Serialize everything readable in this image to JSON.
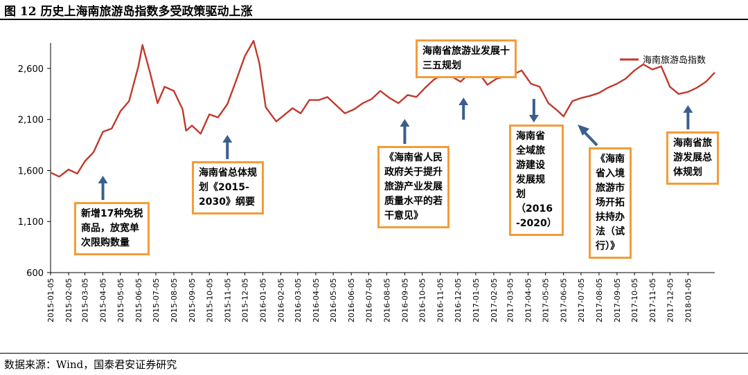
{
  "header": {
    "title": "图 12  历史上海南旅游岛指数多受政策驱动上涨"
  },
  "footer": {
    "source": "数据来源：Wind，国泰君安证券研究"
  },
  "colors": {
    "series": "#c0392b",
    "annotation_border": "#f39c3a",
    "arrow": "#3a5f8f",
    "axis": "#000000"
  },
  "chart_data": {
    "type": "line",
    "title": "",
    "xlabel": "",
    "ylabel": "",
    "ylim": [
      600,
      2850
    ],
    "y_ticks": [
      "600",
      "1,100",
      "1,600",
      "2,100",
      "2,600"
    ],
    "legend_position": "top-right",
    "grid": false,
    "series": [
      {
        "name": "海南旅游岛指数",
        "x": [
          "2015-01-05",
          "2015-01-20",
          "2015-02-05",
          "2015-02-20",
          "2015-03-05",
          "2015-03-20",
          "2015-04-05",
          "2015-04-20",
          "2015-05-05",
          "2015-05-20",
          "2015-06-05",
          "2015-06-12",
          "2015-06-25",
          "2015-07-08",
          "2015-07-20",
          "2015-08-05",
          "2015-08-20",
          "2015-08-26",
          "2015-09-05",
          "2015-09-20",
          "2015-10-05",
          "2015-10-20",
          "2015-11-05",
          "2015-11-20",
          "2015-12-05",
          "2015-12-20",
          "2015-12-30",
          "2016-01-10",
          "2016-01-28",
          "2016-02-10",
          "2016-02-25",
          "2016-03-10",
          "2016-03-25",
          "2016-04-10",
          "2016-04-25",
          "2016-05-10",
          "2016-05-25",
          "2016-06-10",
          "2016-06-25",
          "2016-07-10",
          "2016-07-25",
          "2016-08-10",
          "2016-08-25",
          "2016-09-10",
          "2016-09-25",
          "2016-10-10",
          "2016-10-25",
          "2016-11-10",
          "2016-11-25",
          "2016-12-10",
          "2016-12-25",
          "2017-01-10",
          "2017-01-25",
          "2017-02-10",
          "2017-02-25",
          "2017-03-10",
          "2017-03-25",
          "2017-04-10",
          "2017-04-25",
          "2017-05-10",
          "2017-05-25",
          "2017-06-05",
          "2017-06-20",
          "2017-07-05",
          "2017-07-20",
          "2017-08-05",
          "2017-08-20",
          "2017-09-05",
          "2017-09-20",
          "2017-10-05",
          "2017-10-20",
          "2017-11-05",
          "2017-11-20",
          "2017-12-05",
          "2017-12-20",
          "2018-01-05",
          "2018-01-20",
          "2018-02-05",
          "2018-02-20"
        ],
        "values": [
          1580,
          1540,
          1610,
          1570,
          1690,
          1780,
          1980,
          2010,
          2180,
          2280,
          2620,
          2830,
          2560,
          2260,
          2420,
          2380,
          2200,
          1990,
          2040,
          1960,
          2150,
          2120,
          2250,
          2480,
          2720,
          2870,
          2650,
          2220,
          2080,
          2140,
          2210,
          2160,
          2290,
          2290,
          2320,
          2240,
          2160,
          2200,
          2260,
          2300,
          2380,
          2310,
          2260,
          2340,
          2320,
          2410,
          2490,
          2540,
          2520,
          2470,
          2550,
          2560,
          2440,
          2500,
          2520,
          2540,
          2580,
          2450,
          2420,
          2260,
          2190,
          2130,
          2280,
          2310,
          2330,
          2360,
          2410,
          2450,
          2500,
          2580,
          2640,
          2590,
          2620,
          2420,
          2350,
          2370,
          2410,
          2470,
          2560
        ]
      }
    ],
    "x_tick_labels": [
      "2015-01-05",
      "2015-02-05",
      "2015-03-05",
      "2015-04-05",
      "2015-05-05",
      "2015-06-05",
      "2015-07-05",
      "2015-08-05",
      "2015-09-05",
      "2015-10-05",
      "2015-11-05",
      "2015-12-05",
      "2016-01-05",
      "2016-02-05",
      "2016-03-05",
      "2016-04-05",
      "2016-05-05",
      "2016-06-05",
      "2016-07-05",
      "2016-08-05",
      "2016-09-05",
      "2016-10-05",
      "2016-11-05",
      "2016-12-05",
      "2017-01-05",
      "2017-02-05",
      "2017-03-05",
      "2017-04-05",
      "2017-05-05",
      "2017-06-05",
      "2017-07-05",
      "2017-08-05",
      "2017-09-05",
      "2017-10-05",
      "2017-11-05",
      "2017-12-05",
      "2018-01-05"
    ],
    "annotations": [
      {
        "text": [
          "新增17种免税",
          "商品，放宽单",
          "次限购数量"
        ],
        "date": "2015-04-05",
        "arrow": "up"
      },
      {
        "text": [
          "海南省总体规",
          "划《2015-",
          "2030》纲要"
        ],
        "date": "2015-11-05",
        "arrow": "up"
      },
      {
        "text": [
          "《海南省人民",
          "政府关于提升",
          "旅游产业发展",
          "质量水平的若",
          "干意见》"
        ],
        "date": "2016-09-05",
        "arrow": "up"
      },
      {
        "text": [
          "海南省旅游业发展十",
          "三五规划"
        ],
        "date": "2016-12-15",
        "arrow": "up"
      },
      {
        "text": [
          "海南省",
          "全域旅",
          "游建设",
          "发展规",
          "划",
          "（2016",
          "-2020）"
        ],
        "date": "2017-04-15",
        "arrow": "down"
      },
      {
        "text": [
          "《海南",
          "省入境",
          "旅游市",
          "场开拓",
          "扶持办",
          "法（试",
          "行）》"
        ],
        "date": "2017-06-05",
        "arrow": "diagonal"
      },
      {
        "text": [
          "海南省旅",
          "游发展总",
          "体规划"
        ],
        "date": "2018-01-05",
        "arrow": "up"
      }
    ]
  }
}
